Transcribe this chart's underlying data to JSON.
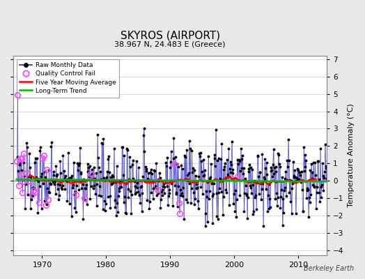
{
  "title": "SKYROS (AIRPORT)",
  "subtitle": "38.967 N, 24.483 E (Greece)",
  "ylabel": "Temperature Anomaly (°C)",
  "watermark": "Berkeley Earth",
  "xlim": [
    1965.5,
    2014.5
  ],
  "ylim": [
    -4.3,
    7.2
  ],
  "yticks": [
    -4,
    -3,
    -2,
    -1,
    0,
    1,
    2,
    3,
    4,
    5,
    6,
    7
  ],
  "xticks": [
    1970,
    1980,
    1990,
    2000,
    2010
  ],
  "bar_color": "#8888dd",
  "line_color": "#2222bb",
  "ma_color": "#ff0000",
  "trend_color": "#00bb00",
  "qc_color": "#ff44ff",
  "bg_color": "#e8e8e8",
  "plot_bg": "#ffffff",
  "seed": 137
}
